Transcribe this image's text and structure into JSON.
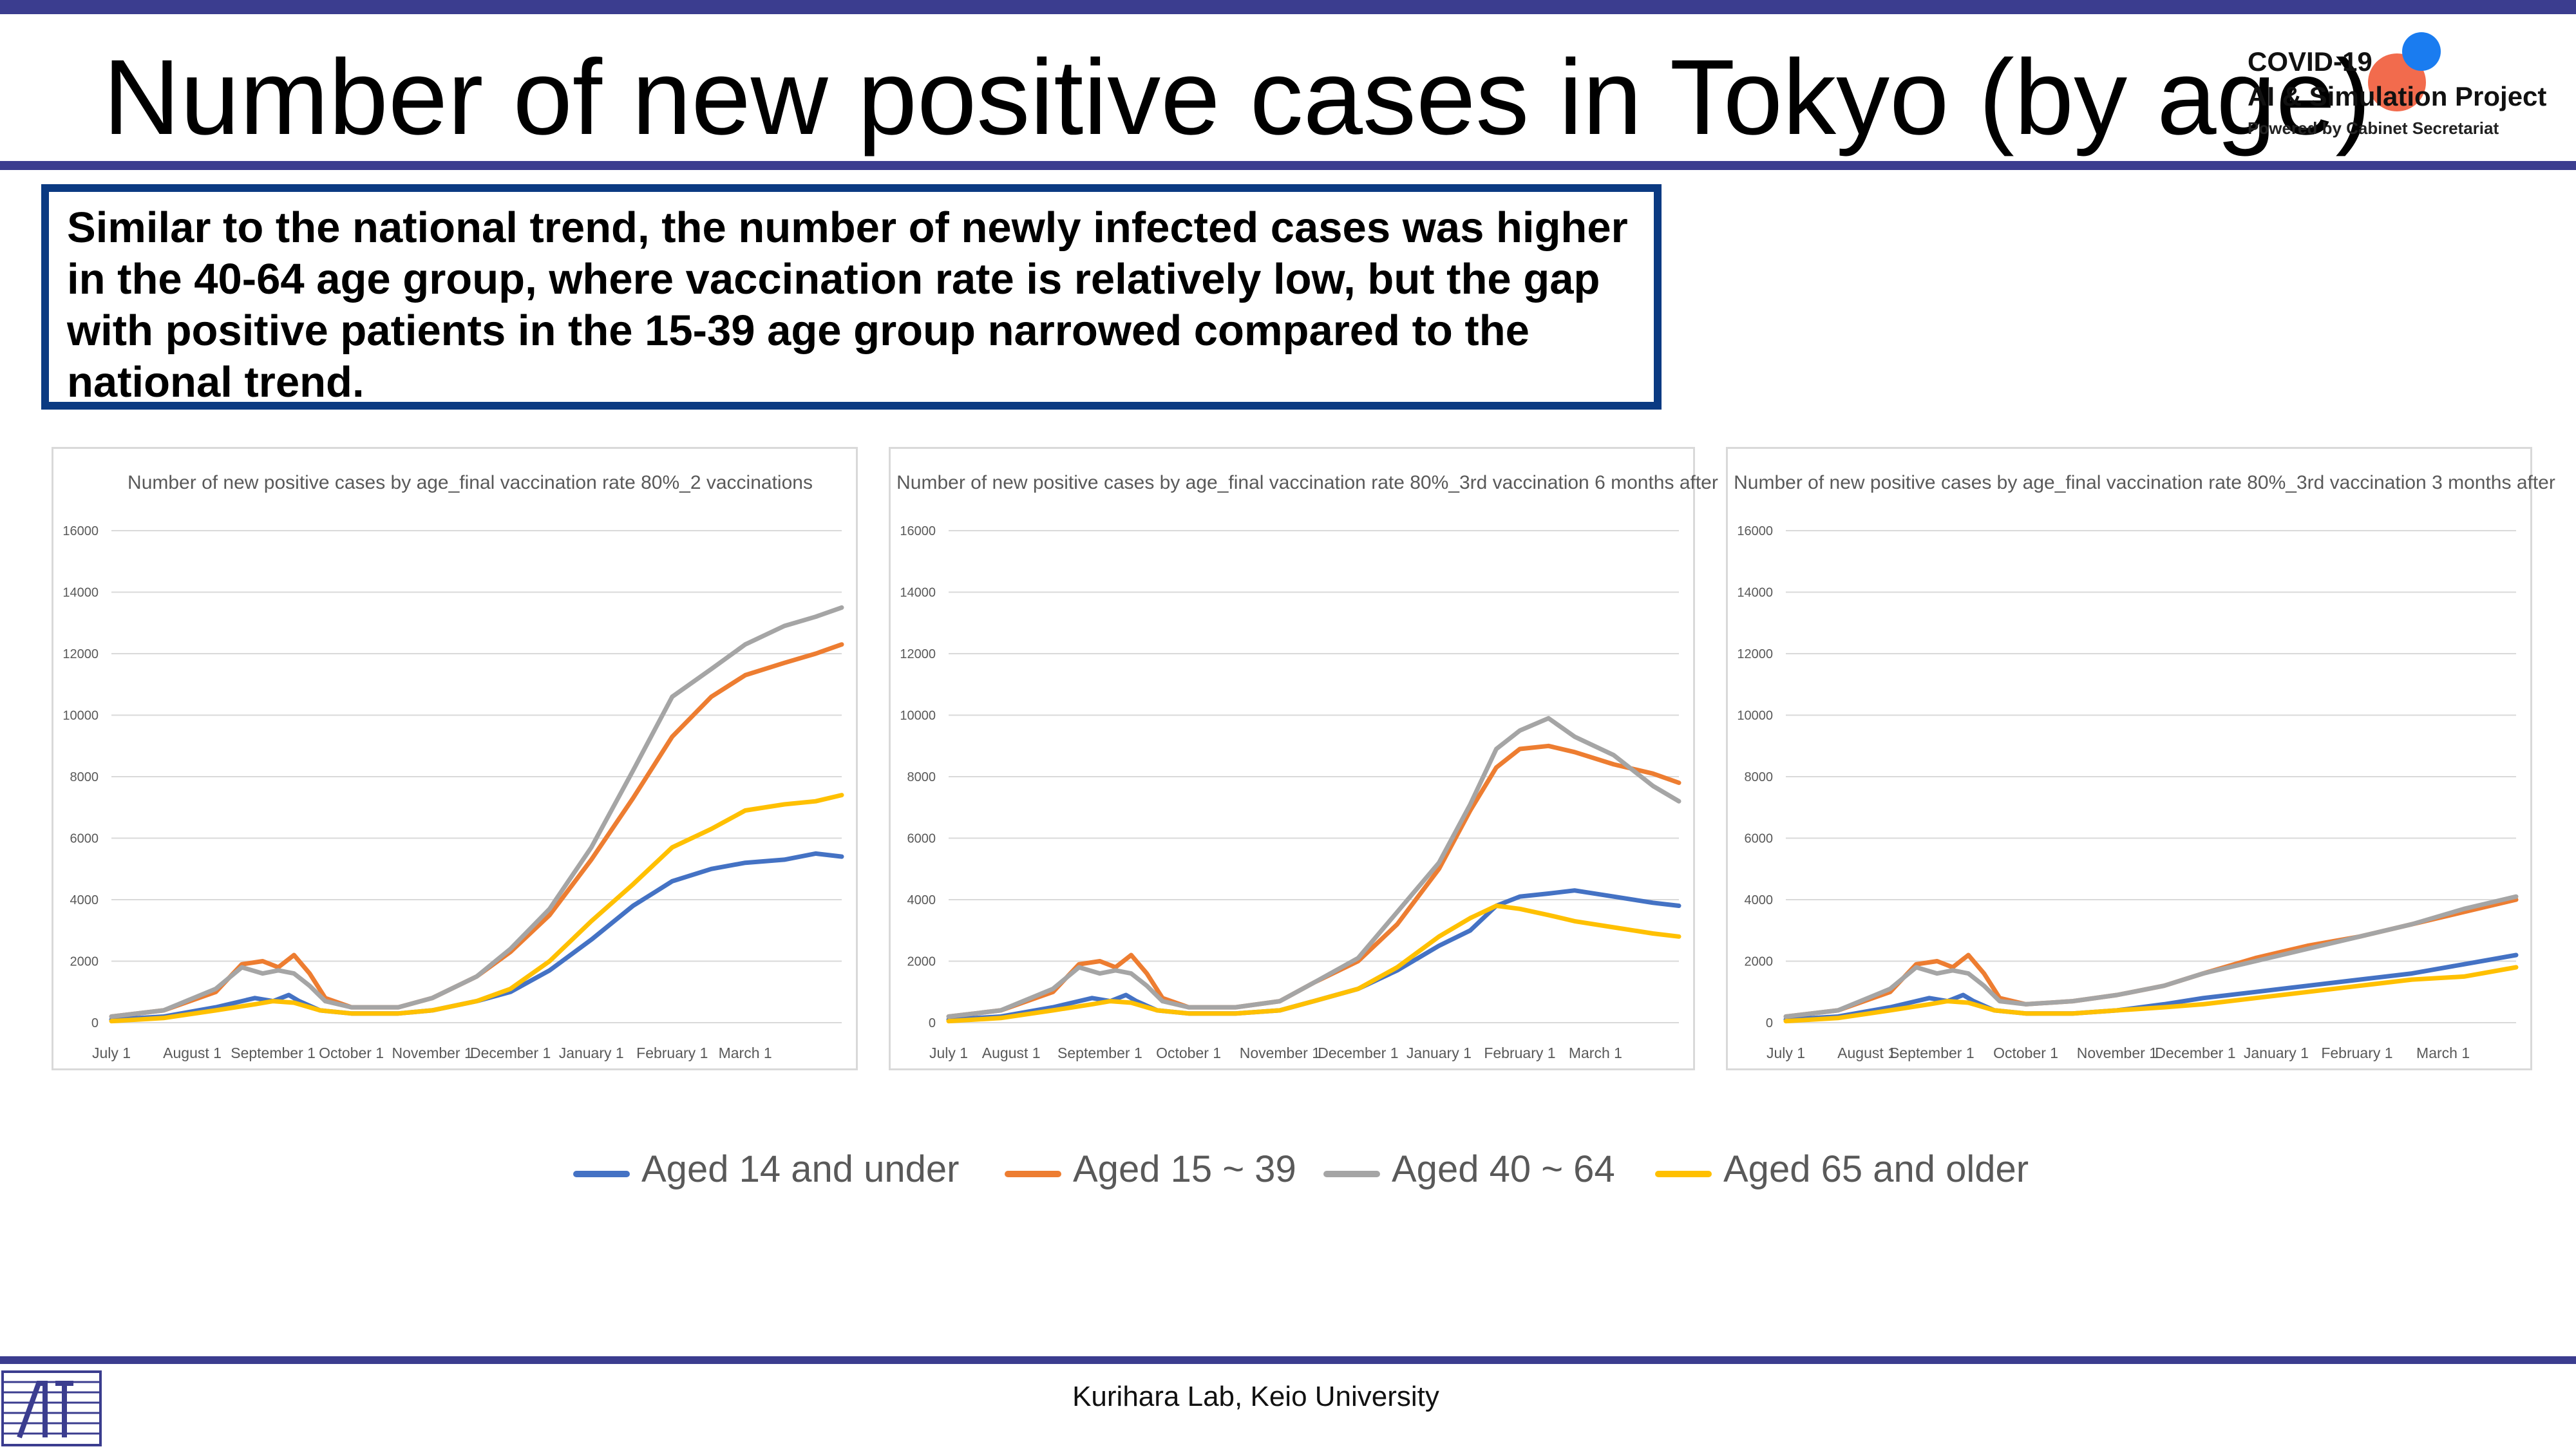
{
  "slide": {
    "title": "Number of new positive cases in Tokyo (by age)",
    "summary": "Similar to the national trend, the number of newly infected cases was higher in the 40-64 age group, where vaccination rate is relatively low, but the gap with positive patients in the 15-39 age group narrowed compared to the national trend.",
    "logo": {
      "line1": "COVID-19",
      "line2": "AI & Simulation Project",
      "line3": "Powered by Cabinet Secretariat"
    },
    "footer": "Kurihara Lab, Keio University",
    "legend": [
      {
        "label": "Aged 14 and under",
        "color": "#4472c4"
      },
      {
        "label": "Aged 15 ~ 39",
        "color": "#ed7d31"
      },
      {
        "label": "Aged 40 ~ 64",
        "color": "#a5a5a5"
      },
      {
        "label": "Aged 65 and older",
        "color": "#ffc000"
      }
    ]
  },
  "chart_data": [
    {
      "type": "line",
      "title": "Number of new positive cases by age_final vaccination rate 80%_2 vaccinations",
      "ylim": [
        0,
        16000
      ],
      "yticks": [
        0,
        2000,
        4000,
        6000,
        8000,
        10000,
        12000,
        14000,
        16000
      ],
      "xlim": [
        0,
        280
      ],
      "xticks": [
        {
          "label": "July 1",
          "x": 0
        },
        {
          "label": "August 1",
          "x": 31
        },
        {
          "label": "September 1",
          "x": 62
        },
        {
          "label": "October 1",
          "x": 92
        },
        {
          "label": "November 1",
          "x": 123
        },
        {
          "label": "December 1",
          "x": 153
        },
        {
          "label": "January 1",
          "x": 184
        },
        {
          "label": "February 1",
          "x": 215
        },
        {
          "label": "March 1",
          "x": 243
        }
      ],
      "grid": true,
      "series": [
        {
          "name": "Aged 14 and under",
          "color": "#4472c4",
          "x": [
            0,
            20,
            40,
            55,
            62,
            68,
            72,
            80,
            92,
            110,
            123,
            140,
            153,
            168,
            184,
            200,
            215,
            230,
            243,
            258,
            270,
            280
          ],
          "y": [
            100,
            200,
            500,
            800,
            700,
            900,
            700,
            400,
            300,
            300,
            400,
            700,
            1000,
            1700,
            2700,
            3800,
            4600,
            5000,
            5200,
            5300,
            5500,
            5400
          ]
        },
        {
          "name": "Aged 15 ~ 39",
          "color": "#ed7d31",
          "x": [
            0,
            20,
            40,
            50,
            58,
            64,
            70,
            76,
            82,
            92,
            110,
            123,
            140,
            153,
            168,
            184,
            200,
            215,
            230,
            243,
            258,
            270,
            280
          ],
          "y": [
            200,
            400,
            1000,
            1900,
            2000,
            1800,
            2200,
            1600,
            800,
            500,
            500,
            800,
            1500,
            2300,
            3500,
            5300,
            7300,
            9300,
            10600,
            11300,
            11700,
            12000,
            12300
          ]
        },
        {
          "name": "Aged 40 ~ 64",
          "color": "#a5a5a5",
          "x": [
            0,
            20,
            40,
            50,
            58,
            64,
            70,
            76,
            82,
            92,
            110,
            123,
            140,
            153,
            168,
            184,
            200,
            215,
            230,
            243,
            258,
            270,
            280
          ],
          "y": [
            200,
            400,
            1100,
            1800,
            1600,
            1700,
            1600,
            1200,
            700,
            500,
            500,
            800,
            1500,
            2400,
            3700,
            5700,
            8200,
            10600,
            11500,
            12300,
            12900,
            13200,
            13500
          ]
        },
        {
          "name": "Aged 65 and older",
          "color": "#ffc000",
          "x": [
            0,
            20,
            40,
            55,
            62,
            70,
            80,
            92,
            110,
            123,
            140,
            153,
            168,
            184,
            200,
            215,
            230,
            243,
            258,
            270,
            280
          ],
          "y": [
            50,
            150,
            400,
            600,
            700,
            650,
            400,
            300,
            300,
            400,
            700,
            1100,
            2000,
            3300,
            4500,
            5700,
            6300,
            6900,
            7100,
            7200,
            7400
          ]
        }
      ]
    },
    {
      "type": "line",
      "title": "Number of new positive cases by age_final vaccination rate 80%_3rd vaccination 6 months after",
      "ylim": [
        0,
        16000
      ],
      "yticks": [
        0,
        2000,
        4000,
        6000,
        8000,
        10000,
        12000,
        14000,
        16000
      ],
      "xlim": [
        0,
        280
      ],
      "xticks": [
        {
          "label": "July 1",
          "x": 0
        },
        {
          "label": "August 1",
          "x": 24
        },
        {
          "label": "September 1",
          "x": 58
        },
        {
          "label": "October 1",
          "x": 92
        },
        {
          "label": "November 1",
          "x": 127
        },
        {
          "label": "December 1",
          "x": 157
        },
        {
          "label": "January 1",
          "x": 188
        },
        {
          "label": "February 1",
          "x": 219
        },
        {
          "label": "March 1",
          "x": 248
        }
      ],
      "grid": true,
      "series": [
        {
          "name": "Aged 14 and under",
          "color": "#4472c4",
          "x": [
            0,
            20,
            40,
            55,
            62,
            68,
            72,
            80,
            92,
            110,
            127,
            140,
            157,
            172,
            188,
            200,
            210,
            219,
            230,
            240,
            255,
            270,
            280
          ],
          "y": [
            100,
            200,
            500,
            800,
            700,
            900,
            700,
            400,
            300,
            300,
            400,
            700,
            1100,
            1700,
            2500,
            3000,
            3800,
            4100,
            4200,
            4300,
            4100,
            3900,
            3800
          ]
        },
        {
          "name": "Aged 15 ~ 39",
          "color": "#ed7d31",
          "x": [
            0,
            20,
            40,
            50,
            58,
            64,
            70,
            76,
            82,
            92,
            110,
            127,
            140,
            157,
            172,
            188,
            200,
            210,
            219,
            230,
            240,
            255,
            270,
            280
          ],
          "y": [
            200,
            400,
            1000,
            1900,
            2000,
            1800,
            2200,
            1600,
            800,
            500,
            500,
            700,
            1300,
            2000,
            3200,
            5000,
            6900,
            8300,
            8900,
            9000,
            8800,
            8400,
            8100,
            7800
          ]
        },
        {
          "name": "Aged 40 ~ 64",
          "color": "#a5a5a5",
          "x": [
            0,
            20,
            40,
            50,
            58,
            64,
            70,
            76,
            82,
            92,
            110,
            127,
            140,
            157,
            172,
            188,
            200,
            210,
            219,
            230,
            240,
            255,
            270,
            280
          ],
          "y": [
            200,
            400,
            1100,
            1800,
            1600,
            1700,
            1600,
            1200,
            700,
            500,
            500,
            700,
            1300,
            2100,
            3600,
            5200,
            7100,
            8900,
            9500,
            9900,
            9300,
            8700,
            7700,
            7200
          ]
        },
        {
          "name": "Aged 65 and older",
          "color": "#ffc000",
          "x": [
            0,
            20,
            40,
            55,
            62,
            70,
            80,
            92,
            110,
            127,
            140,
            157,
            172,
            188,
            200,
            210,
            219,
            230,
            240,
            255,
            270,
            280
          ],
          "y": [
            50,
            150,
            400,
            600,
            700,
            650,
            400,
            300,
            300,
            400,
            700,
            1100,
            1800,
            2800,
            3400,
            3800,
            3700,
            3500,
            3300,
            3100,
            2900,
            2800
          ]
        }
      ]
    },
    {
      "type": "line",
      "title": "Number of new positive cases by age_final vaccination rate 80%_3rd vaccination 3 months after",
      "ylim": [
        0,
        16000
      ],
      "yticks": [
        0,
        2000,
        4000,
        6000,
        8000,
        10000,
        12000,
        14000,
        16000
      ],
      "xlim": [
        0,
        280
      ],
      "xticks": [
        {
          "label": "July 1",
          "x": 0
        },
        {
          "label": "August 1",
          "x": 31
        },
        {
          "label": "September 1",
          "x": 56
        },
        {
          "label": "October 1",
          "x": 92
        },
        {
          "label": "November 1",
          "x": 127
        },
        {
          "label": "December 1",
          "x": 157
        },
        {
          "label": "January 1",
          "x": 188
        },
        {
          "label": "February 1",
          "x": 219
        },
        {
          "label": "March 1",
          "x": 252
        }
      ],
      "grid": true,
      "series": [
        {
          "name": "Aged 14 and under",
          "color": "#4472c4",
          "x": [
            0,
            20,
            40,
            55,
            62,
            68,
            72,
            80,
            92,
            110,
            127,
            145,
            160,
            180,
            200,
            220,
            240,
            260,
            280
          ],
          "y": [
            100,
            200,
            500,
            800,
            700,
            900,
            700,
            400,
            300,
            300,
            400,
            600,
            800,
            1000,
            1200,
            1400,
            1600,
            1900,
            2200
          ]
        },
        {
          "name": "Aged 15 ~ 39",
          "color": "#ed7d31",
          "x": [
            0,
            20,
            40,
            50,
            58,
            64,
            70,
            76,
            82,
            92,
            110,
            127,
            145,
            160,
            180,
            200,
            220,
            240,
            260,
            280
          ],
          "y": [
            200,
            400,
            1000,
            1900,
            2000,
            1800,
            2200,
            1600,
            800,
            600,
            700,
            900,
            1200,
            1600,
            2100,
            2500,
            2800,
            3200,
            3600,
            4000
          ]
        },
        {
          "name": "Aged 40 ~ 64",
          "color": "#a5a5a5",
          "x": [
            0,
            20,
            40,
            50,
            58,
            64,
            70,
            76,
            82,
            92,
            110,
            127,
            145,
            160,
            180,
            200,
            220,
            240,
            260,
            280
          ],
          "y": [
            200,
            400,
            1100,
            1800,
            1600,
            1700,
            1600,
            1200,
            700,
            600,
            700,
            900,
            1200,
            1600,
            2000,
            2400,
            2800,
            3200,
            3700,
            4100
          ]
        },
        {
          "name": "Aged 65 and older",
          "color": "#ffc000",
          "x": [
            0,
            20,
            40,
            55,
            62,
            70,
            80,
            92,
            110,
            127,
            145,
            160,
            180,
            200,
            220,
            240,
            260,
            280
          ],
          "y": [
            50,
            150,
            400,
            600,
            700,
            650,
            400,
            300,
            300,
            400,
            500,
            600,
            800,
            1000,
            1200,
            1400,
            1500,
            1800
          ]
        }
      ]
    }
  ]
}
